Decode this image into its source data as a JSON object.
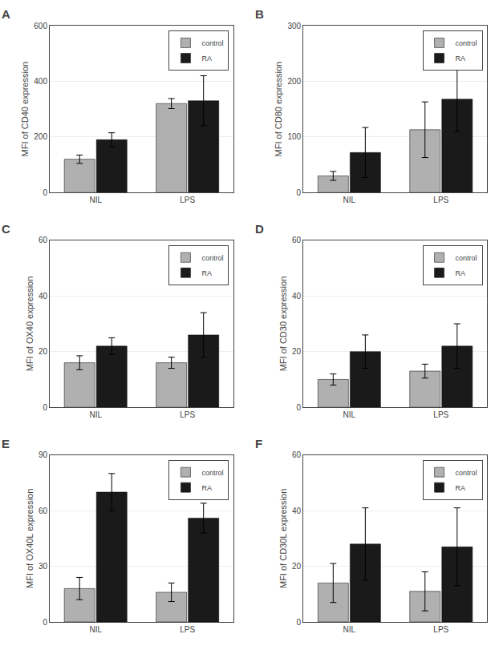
{
  "chart_data": [
    {
      "type": "bar",
      "title": "A",
      "ylabel": "MFI of CD40 expression",
      "categories": [
        "NIL",
        "LPS"
      ],
      "series": [
        {
          "name": "control",
          "color": "#b0b0b0",
          "values": [
            120,
            320
          ],
          "errors": [
            15,
            18
          ]
        },
        {
          "name": "RA",
          "color": "#1a1a1a",
          "values": [
            190,
            330
          ],
          "errors": [
            25,
            90
          ]
        }
      ],
      "ylim": [
        0,
        600
      ],
      "yticks": [
        0,
        200,
        400,
        600
      ],
      "grid": true,
      "legend": "upper right"
    },
    {
      "type": "bar",
      "title": "B",
      "ylabel": "MFI of CD80 expression",
      "categories": [
        "NIL",
        "LPS"
      ],
      "series": [
        {
          "name": "control",
          "color": "#b0b0b0",
          "values": [
            30,
            113
          ],
          "errors": [
            8,
            50
          ]
        },
        {
          "name": "RA",
          "color": "#1a1a1a",
          "values": [
            72,
            168
          ],
          "errors": [
            45,
            58
          ]
        }
      ],
      "ylim": [
        0,
        300
      ],
      "yticks": [
        0,
        100,
        200,
        300
      ],
      "grid": true,
      "legend": "upper right"
    },
    {
      "type": "bar",
      "title": "C",
      "ylabel": "MFI of OX40 expression",
      "categories": [
        "NIL",
        "LPS"
      ],
      "series": [
        {
          "name": "control",
          "color": "#b0b0b0",
          "values": [
            16,
            16
          ],
          "errors": [
            2.5,
            2
          ]
        },
        {
          "name": "RA",
          "color": "#1a1a1a",
          "values": [
            22,
            26
          ],
          "errors": [
            3,
            8
          ]
        }
      ],
      "ylim": [
        0,
        60
      ],
      "yticks": [
        0,
        20,
        40,
        60
      ],
      "grid": true,
      "legend": "upper right"
    },
    {
      "type": "bar",
      "title": "D",
      "ylabel": "MFI of CD30 expression",
      "categories": [
        "NIL",
        "LPS"
      ],
      "series": [
        {
          "name": "control",
          "color": "#b0b0b0",
          "values": [
            10,
            13
          ],
          "errors": [
            2,
            2.5
          ]
        },
        {
          "name": "RA",
          "color": "#1a1a1a",
          "values": [
            20,
            22
          ],
          "errors": [
            6,
            8
          ]
        }
      ],
      "ylim": [
        0,
        60
      ],
      "yticks": [
        0,
        20,
        40,
        60
      ],
      "grid": true,
      "legend": "upper right"
    },
    {
      "type": "bar",
      "title": "E",
      "ylabel": "MFI of OX40L expression",
      "categories": [
        "NIL",
        "LPS"
      ],
      "series": [
        {
          "name": "control",
          "color": "#b0b0b0",
          "values": [
            18,
            16
          ],
          "errors": [
            6,
            5
          ]
        },
        {
          "name": "RA",
          "color": "#1a1a1a",
          "values": [
            70,
            56
          ],
          "errors": [
            10,
            8
          ]
        }
      ],
      "ylim": [
        0,
        90
      ],
      "yticks": [
        0,
        30,
        60,
        90
      ],
      "grid": true,
      "legend": "upper right"
    },
    {
      "type": "bar",
      "title": "F",
      "ylabel": "MFI of CD30L expression",
      "categories": [
        "NIL",
        "LPS"
      ],
      "series": [
        {
          "name": "control",
          "color": "#b0b0b0",
          "values": [
            14,
            11
          ],
          "errors": [
            7,
            7
          ]
        },
        {
          "name": "RA",
          "color": "#1a1a1a",
          "values": [
            28,
            27
          ],
          "errors": [
            13,
            14
          ]
        }
      ],
      "ylim": [
        0,
        60
      ],
      "yticks": [
        0,
        20,
        40,
        60
      ],
      "grid": true,
      "legend": "upper right"
    }
  ]
}
